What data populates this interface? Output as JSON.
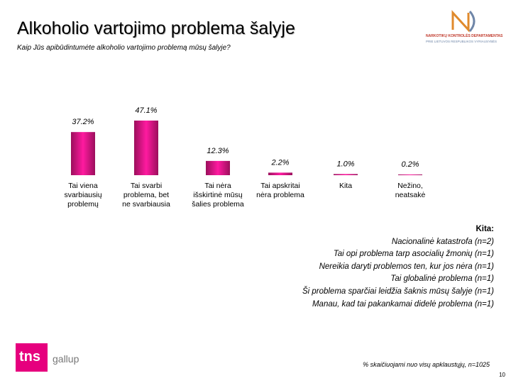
{
  "header": {
    "title": "Alkoholio vartojimo problema šalyje",
    "subtitle": "Kaip Jūs apibūdintumėte alkoholio vartojimo problemą mūsų šalyje?"
  },
  "logos": {
    "dept_monogram": "NKD",
    "dept_line1": "NARKOTIKŲ KONTROLĖS DEPARTAMENTAS",
    "dept_line2": "PRIE LIETUVOS RESPUBLIKOS VYRIAUSYBĖS",
    "tns": "tns",
    "gallup": "gallup"
  },
  "chart_data": {
    "type": "bar",
    "categories": [
      [
        "Tai viena",
        "svarbiausių",
        "problemų"
      ],
      [
        "Tai svarbi",
        "problema, bet",
        "ne svarbiausia"
      ],
      [
        "Tai nėra",
        "išskirtinė mūsų",
        "šalies problema"
      ],
      [
        "Tai apskritai",
        "nėra problema"
      ],
      [
        "Kita"
      ],
      [
        "Nežino,",
        "neatsakė"
      ]
    ],
    "values": [
      37.2,
      47.1,
      12.3,
      2.2,
      1.0,
      0.2
    ],
    "value_labels": [
      "37.2%",
      "47.1%",
      "12.3%",
      "2.2%",
      "1.0%",
      "0.2%"
    ],
    "bar_color_top": "#9b0f5c",
    "bar_color_mid": "#ff1aa0",
    "ylim": [
      0,
      47.1
    ],
    "grid": false,
    "legend": "none"
  },
  "other": {
    "heading": "Kita:",
    "items": [
      "Nacionalinė katastrofa (n=2)",
      "Tai opi problema tarp asocialių žmonių (n=1)",
      "Nereikia daryti problemos ten, kur jos nėra (n=1)",
      "Tai globalinė problema (n=1)",
      "Ši problema sparčiai leidžia šaknis mūsų šalyje (n=1)",
      "Manau, kad tai pakankamai didelė problema (n=1)"
    ]
  },
  "footer": {
    "note": "% skaičiuojami nuo visų apklaustųjų, n=1025",
    "page_number": "10"
  }
}
